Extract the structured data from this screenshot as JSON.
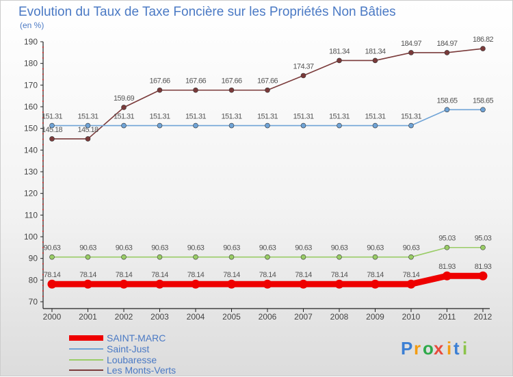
{
  "chart_data": {
    "type": "line",
    "title": "Evolution du Taux de Taxe Foncière sur les Propriétés Non Bâties",
    "ylabel": "(en %)",
    "xlabel": "",
    "ylim": [
      70,
      190
    ],
    "yticks": [
      "70",
      "80",
      "90",
      "100",
      "110",
      "120",
      "130",
      "140",
      "150",
      "160",
      "170",
      "180",
      "190"
    ],
    "categories": [
      "2000",
      "2001",
      "2002",
      "2003",
      "2004",
      "2005",
      "2006",
      "2007",
      "2008",
      "2009",
      "2010",
      "2011",
      "2012"
    ],
    "series": [
      {
        "name": "SAINT-MARC",
        "color": "#ee0000",
        "values": [
          78.14,
          78.14,
          78.14,
          78.14,
          78.14,
          78.14,
          78.14,
          78.14,
          78.14,
          78.14,
          78.14,
          81.93,
          81.93
        ],
        "labels": [
          "78.14",
          "78.14",
          "78.14",
          "78.14",
          "78.14",
          "78.14",
          "78.14",
          "78.14",
          "78.14",
          "78.14",
          "78.14",
          "81.93",
          "81.93"
        ]
      },
      {
        "name": "Saint-Just",
        "color": "#6fa3d6",
        "values": [
          151.31,
          151.31,
          151.31,
          151.31,
          151.31,
          151.31,
          151.31,
          151.31,
          151.31,
          151.31,
          151.31,
          158.65,
          158.65
        ],
        "labels": [
          "151.31",
          "151.31",
          "151.31",
          "151.31",
          "151.31",
          "151.31",
          "151.31",
          "151.31",
          "151.31",
          "151.31",
          "151.31",
          "158.65",
          "158.65"
        ]
      },
      {
        "name": "Loubaresse",
        "color": "#99cc66",
        "values": [
          90.63,
          90.63,
          90.63,
          90.63,
          90.63,
          90.63,
          90.63,
          90.63,
          90.63,
          90.63,
          90.63,
          95.03,
          95.03
        ],
        "labels": [
          "90.63",
          "90.63",
          "90.63",
          "90.63",
          "90.63",
          "90.63",
          "90.63",
          "90.63",
          "90.63",
          "90.63",
          "90.63",
          "95.03",
          "95.03"
        ]
      },
      {
        "name": "Les Monts-Verts",
        "color": "#7a3a3a",
        "values": [
          145.18,
          145.18,
          159.69,
          167.66,
          167.66,
          167.66,
          167.66,
          174.37,
          181.34,
          181.34,
          184.97,
          184.97,
          186.82
        ],
        "labels": [
          "145.18",
          "145.18",
          "159.69",
          "167.66",
          "167.66",
          "167.66",
          "167.66",
          "174.37",
          "181.34",
          "181.34",
          "184.97",
          "184.97",
          "186.82"
        ]
      }
    ],
    "legend_position": "bottom-left",
    "grid": false
  },
  "logo": {
    "letters": [
      "P",
      "r",
      "o",
      "x",
      "i",
      "t",
      "i"
    ],
    "colors": [
      "#3b7fd4",
      "#f39c12",
      "#2eaa4a",
      "#e74c3c",
      "#f39c12",
      "#3b7fd4",
      "#8bc34a"
    ]
  }
}
